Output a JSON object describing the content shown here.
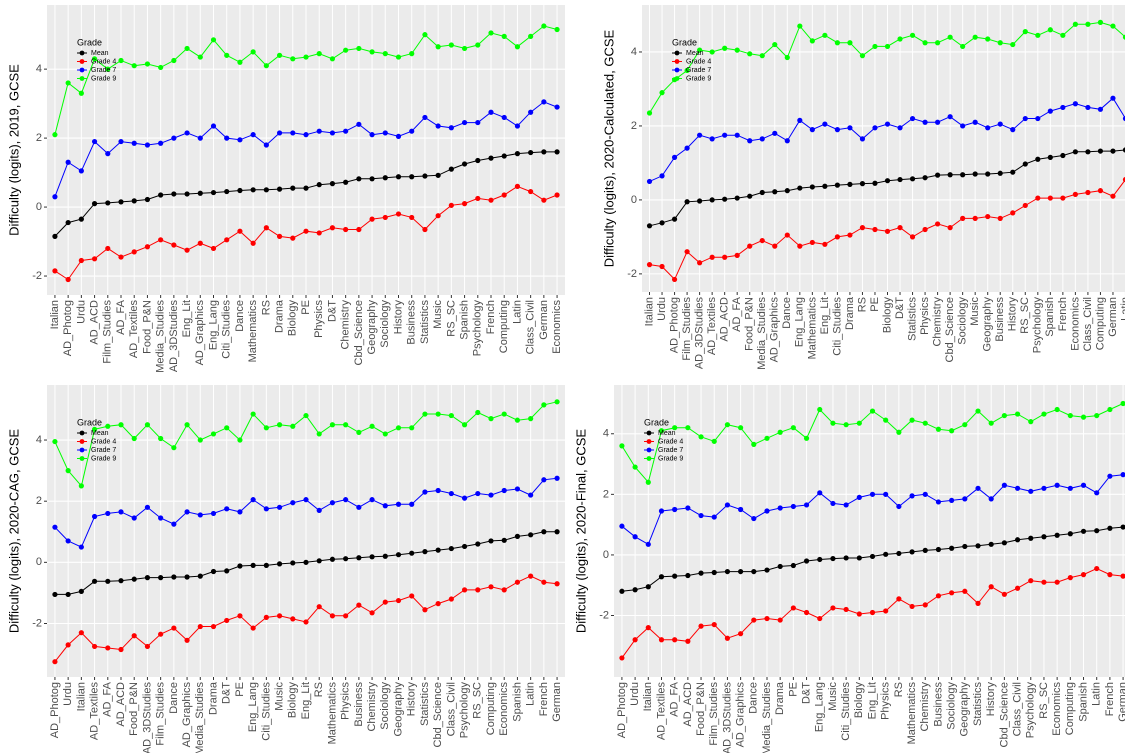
{
  "chart_data": [
    {
      "type": "line",
      "ylabel": "Difficulty (logits), 2019, GCSE",
      "legend_title": "Grade",
      "legend": "top-left",
      "grid": true,
      "ylim": [
        -2.55,
        5.86
      ],
      "yticks": [
        -2,
        0,
        2,
        4
      ],
      "categories": [
        "Italian",
        "AD_Photog",
        "Urdu",
        "AD_ACD",
        "Film_Studies",
        "AD_FA",
        "AD_Textiles",
        "Food_P&N",
        "Media_Studies",
        "AD_3DStudies",
        "Eng_Lit",
        "AD_Graphics",
        "Eng_Lang",
        "Citi_Studies",
        "Dance",
        "Mathematics",
        "RS",
        "Drama",
        "Biology",
        "PE",
        "Physics",
        "D&T",
        "Chemistry",
        "Cbd_Science",
        "Geography",
        "Sociology",
        "History",
        "Business",
        "Statistics",
        "Music",
        "RS_SC",
        "Spanish",
        "Psychology",
        "French",
        "Computing",
        "Latin",
        "Class_Civil",
        "German",
        "Economics"
      ],
      "series": [
        {
          "name": "Mean",
          "color": "#000000",
          "values": [
            -0.85,
            -0.45,
            -0.35,
            0.1,
            0.12,
            0.15,
            0.18,
            0.22,
            0.35,
            0.38,
            0.38,
            0.4,
            0.42,
            0.45,
            0.48,
            0.5,
            0.5,
            0.52,
            0.55,
            0.55,
            0.65,
            0.68,
            0.72,
            0.82,
            0.82,
            0.85,
            0.88,
            0.88,
            0.9,
            0.92,
            1.1,
            1.25,
            1.35,
            1.42,
            1.48,
            1.55,
            1.58,
            1.6,
            1.6
          ]
        },
        {
          "name": "Grade 4",
          "color": "#ff0000",
          "values": [
            -1.85,
            -2.1,
            -1.55,
            -1.5,
            -1.2,
            -1.45,
            -1.3,
            -1.15,
            -0.95,
            -1.1,
            -1.25,
            -1.05,
            -1.2,
            -0.95,
            -0.7,
            -1.05,
            -0.6,
            -0.85,
            -0.9,
            -0.7,
            -0.75,
            -0.6,
            -0.65,
            -0.65,
            -0.35,
            -0.3,
            -0.2,
            -0.3,
            -0.65,
            -0.25,
            0.05,
            0.1,
            0.25,
            0.2,
            0.35,
            0.6,
            0.45,
            0.2,
            0.35
          ]
        },
        {
          "name": "Grade 7",
          "color": "#0000ff",
          "values": [
            0.3,
            1.3,
            1.05,
            1.9,
            1.55,
            1.9,
            1.85,
            1.8,
            1.85,
            2.0,
            2.15,
            2.0,
            2.35,
            2.0,
            1.95,
            2.1,
            1.8,
            2.15,
            2.15,
            2.1,
            2.2,
            2.15,
            2.2,
            2.4,
            2.1,
            2.15,
            2.05,
            2.2,
            2.6,
            2.35,
            2.3,
            2.45,
            2.45,
            2.75,
            2.6,
            2.35,
            2.75,
            3.05,
            2.9
          ]
        },
        {
          "name": "Grade 9",
          "color": "#00ff00",
          "values": [
            2.1,
            3.6,
            3.3,
            4.3,
            4.0,
            4.25,
            4.1,
            4.15,
            4.05,
            4.25,
            4.6,
            4.35,
            4.85,
            4.4,
            4.2,
            4.5,
            4.1,
            4.4,
            4.3,
            4.35,
            4.45,
            4.3,
            4.55,
            4.6,
            4.5,
            4.45,
            4.35,
            4.45,
            5.0,
            4.65,
            4.7,
            4.6,
            4.7,
            5.05,
            4.95,
            4.65,
            4.95,
            5.25,
            5.15
          ]
        }
      ]
    },
    {
      "type": "line",
      "ylabel": "Difficulty (logits), 2020-Calculated, GCSE",
      "legend_title": "Grade",
      "legend": "top-left",
      "grid": true,
      "ylim": [
        -2.49,
        5.27
      ],
      "yticks": [
        -2,
        0,
        2,
        4
      ],
      "categories": [
        "Italian",
        "Urdu",
        "AD_Photog",
        "Film_Studies",
        "AD_3DStudies",
        "AD_Textiles",
        "AD_ACD",
        "AD_FA",
        "Food_P&N",
        "Media_Studies",
        "AD_Graphics",
        "Dance",
        "Eng_Lang",
        "Mathematics",
        "Eng_Lit",
        "Citi_Studies",
        "Drama",
        "RS",
        "PE",
        "Biology",
        "D&T",
        "Statistics",
        "Physics",
        "Chemistry",
        "Cbd_Science",
        "Sociology",
        "Music",
        "Geography",
        "Business",
        "History",
        "RS_SC",
        "Psychology",
        "Spanish",
        "French",
        "Economics",
        "Class_Civil",
        "Computing",
        "German",
        "Latin"
      ],
      "series": [
        {
          "name": "Mean",
          "color": "#000000",
          "values": [
            -0.7,
            -0.62,
            -0.52,
            -0.05,
            -0.03,
            0.0,
            0.02,
            0.05,
            0.1,
            0.2,
            0.22,
            0.25,
            0.32,
            0.35,
            0.37,
            0.4,
            0.42,
            0.44,
            0.45,
            0.52,
            0.55,
            0.57,
            0.6,
            0.67,
            0.68,
            0.68,
            0.7,
            0.7,
            0.72,
            0.75,
            0.97,
            1.1,
            1.15,
            1.2,
            1.3,
            1.3,
            1.32,
            1.32,
            1.35
          ]
        },
        {
          "name": "Grade 4",
          "color": "#ff0000",
          "values": [
            -1.75,
            -1.8,
            -2.15,
            -1.4,
            -1.7,
            -1.55,
            -1.55,
            -1.5,
            -1.25,
            -1.1,
            -1.25,
            -0.95,
            -1.25,
            -1.15,
            -1.2,
            -1.0,
            -0.95,
            -0.75,
            -0.8,
            -0.85,
            -0.75,
            -1.0,
            -0.8,
            -0.65,
            -0.75,
            -0.5,
            -0.5,
            -0.45,
            -0.5,
            -0.35,
            -0.15,
            0.05,
            0.05,
            0.05,
            0.15,
            0.2,
            0.25,
            0.1,
            0.55
          ]
        },
        {
          "name": "Grade 7",
          "color": "#0000ff",
          "values": [
            0.5,
            0.65,
            1.15,
            1.4,
            1.75,
            1.65,
            1.75,
            1.75,
            1.6,
            1.65,
            1.8,
            1.6,
            2.15,
            1.9,
            2.05,
            1.9,
            1.95,
            1.65,
            1.95,
            2.05,
            1.95,
            2.2,
            2.1,
            2.1,
            2.25,
            2.0,
            2.1,
            1.95,
            2.05,
            1.9,
            2.2,
            2.2,
            2.4,
            2.5,
            2.6,
            2.5,
            2.45,
            2.75,
            2.2
          ]
        },
        {
          "name": "Grade 9",
          "color": "#00ff00",
          "values": [
            2.35,
            2.9,
            3.25,
            3.5,
            4.05,
            4.0,
            4.1,
            4.05,
            3.95,
            3.9,
            4.2,
            3.85,
            4.7,
            4.3,
            4.45,
            4.25,
            4.25,
            3.9,
            4.15,
            4.15,
            4.35,
            4.45,
            4.25,
            4.25,
            4.4,
            4.15,
            4.4,
            4.35,
            4.25,
            4.2,
            4.55,
            4.45,
            4.6,
            4.45,
            4.75,
            4.75,
            4.8,
            4.7,
            4.4
          ]
        }
      ]
    },
    {
      "type": "line",
      "ylabel": "Difficulty (logits), 2020-CAG, GCSE",
      "legend_title": "Grade",
      "legend": "top-left",
      "grid": true,
      "ylim": [
        -3.75,
        5.8
      ],
      "yticks": [
        -2,
        0,
        2,
        4
      ],
      "categories": [
        "AD_Photog",
        "Urdu",
        "Italian",
        "AD_Textiles",
        "AD_FA",
        "AD_ACD",
        "Food_P&N",
        "AD_3DStudies",
        "Film_Studies",
        "Dance",
        "AD_Graphics",
        "Media_Studies",
        "Drama",
        "D&T",
        "PE",
        "Eng_Lang",
        "Citi_Studies",
        "Music",
        "Biology",
        "Eng_Lit",
        "RS",
        "Mathematics",
        "Physics",
        "Business",
        "Chemistry",
        "Sociology",
        "Geography",
        "History",
        "Statistics",
        "Cbd_Science",
        "Class_Civil",
        "Psychology",
        "RS_SC",
        "Computing",
        "Economics",
        "Spanish",
        "Latin",
        "French",
        "German"
      ],
      "series": [
        {
          "name": "Mean",
          "color": "#000000",
          "values": [
            -1.05,
            -1.05,
            -0.95,
            -0.62,
            -0.62,
            -0.6,
            -0.55,
            -0.5,
            -0.5,
            -0.48,
            -0.48,
            -0.45,
            -0.3,
            -0.28,
            -0.12,
            -0.1,
            -0.1,
            -0.05,
            -0.02,
            0.0,
            0.05,
            0.1,
            0.12,
            0.15,
            0.18,
            0.2,
            0.25,
            0.3,
            0.35,
            0.4,
            0.45,
            0.52,
            0.6,
            0.7,
            0.72,
            0.85,
            0.9,
            1.0,
            1.0
          ]
        },
        {
          "name": "Grade 4",
          "color": "#ff0000",
          "values": [
            -3.25,
            -2.7,
            -2.3,
            -2.75,
            -2.8,
            -2.85,
            -2.4,
            -2.75,
            -2.35,
            -2.15,
            -2.55,
            -2.1,
            -2.1,
            -1.9,
            -1.75,
            -2.15,
            -1.8,
            -1.75,
            -1.85,
            -1.95,
            -1.45,
            -1.75,
            -1.75,
            -1.4,
            -1.65,
            -1.3,
            -1.25,
            -1.1,
            -1.55,
            -1.35,
            -1.2,
            -0.9,
            -0.9,
            -0.8,
            -0.9,
            -0.65,
            -0.45,
            -0.65,
            -0.7
          ]
        },
        {
          "name": "Grade 7",
          "color": "#0000ff",
          "values": [
            1.15,
            0.7,
            0.5,
            1.5,
            1.6,
            1.65,
            1.45,
            1.8,
            1.45,
            1.25,
            1.65,
            1.55,
            1.6,
            1.75,
            1.65,
            2.05,
            1.75,
            1.8,
            1.95,
            2.05,
            1.7,
            1.95,
            2.05,
            1.8,
            2.05,
            1.85,
            1.9,
            1.9,
            2.3,
            2.35,
            2.25,
            2.1,
            2.25,
            2.2,
            2.35,
            2.4,
            2.2,
            2.7,
            2.75
          ]
        },
        {
          "name": "Grade 9",
          "color": "#00ff00",
          "values": [
            3.95,
            3.0,
            2.5,
            4.35,
            4.45,
            4.5,
            4.05,
            4.5,
            4.05,
            3.75,
            4.5,
            4.0,
            4.2,
            4.4,
            4.0,
            4.85,
            4.4,
            4.5,
            4.45,
            4.8,
            4.2,
            4.5,
            4.5,
            4.25,
            4.45,
            4.2,
            4.4,
            4.4,
            4.85,
            4.85,
            4.8,
            4.5,
            4.9,
            4.7,
            4.85,
            4.65,
            4.7,
            5.15,
            5.25
          ]
        }
      ]
    },
    {
      "type": "line",
      "ylabel": "Difficulty (logits), 2020-Final, GCSE",
      "legend_title": "Grade",
      "legend": "top-left",
      "grid": true,
      "ylim": [
        -4.03,
        5.61
      ],
      "yticks": [
        -2,
        0,
        2,
        4
      ],
      "categories": [
        "AD_Photog",
        "Urdu",
        "Italian",
        "AD_Textiles",
        "AD_FA",
        "AD_ACD",
        "Food_P&N",
        "Film_Studies",
        "AD_3DStudies",
        "AD_Graphics",
        "Dance",
        "Media_Studies",
        "Drama",
        "PE",
        "D&T",
        "Eng_Lang",
        "Music",
        "Citi_Studies",
        "Biology",
        "Eng_Lit",
        "Physics",
        "RS",
        "Mathematics",
        "Chemistry",
        "Business",
        "Sociology",
        "Geography",
        "Statistics",
        "History",
        "Cbd_Science",
        "Class_Civil",
        "Psychology",
        "RS_SC",
        "Economics",
        "Computing",
        "Spanish",
        "Latin",
        "French",
        "German"
      ],
      "series": [
        {
          "name": "Mean",
          "color": "#000000",
          "values": [
            -1.2,
            -1.15,
            -1.05,
            -0.72,
            -0.7,
            -0.68,
            -0.6,
            -0.58,
            -0.55,
            -0.55,
            -0.55,
            -0.5,
            -0.38,
            -0.35,
            -0.2,
            -0.15,
            -0.12,
            -0.1,
            -0.1,
            -0.05,
            0.02,
            0.05,
            0.1,
            0.15,
            0.18,
            0.22,
            0.28,
            0.3,
            0.35,
            0.4,
            0.5,
            0.55,
            0.6,
            0.65,
            0.7,
            0.78,
            0.8,
            0.88,
            0.92
          ]
        },
        {
          "name": "Grade 4",
          "color": "#ff0000",
          "values": [
            -3.4,
            -2.8,
            -2.4,
            -2.8,
            -2.8,
            -2.85,
            -2.35,
            -2.3,
            -2.75,
            -2.6,
            -2.15,
            -2.1,
            -2.15,
            -1.75,
            -1.9,
            -2.1,
            -1.75,
            -1.8,
            -1.95,
            -1.9,
            -1.85,
            -1.45,
            -1.7,
            -1.65,
            -1.35,
            -1.25,
            -1.2,
            -1.6,
            -1.05,
            -1.3,
            -1.1,
            -0.85,
            -0.9,
            -0.9,
            -0.75,
            -0.65,
            -0.45,
            -0.65,
            -0.7
          ]
        },
        {
          "name": "Grade 7",
          "color": "#0000ff",
          "values": [
            0.95,
            0.6,
            0.35,
            1.45,
            1.5,
            1.55,
            1.3,
            1.25,
            1.65,
            1.5,
            1.2,
            1.45,
            1.55,
            1.6,
            1.65,
            2.05,
            1.7,
            1.65,
            1.9,
            2.0,
            2.0,
            1.6,
            1.95,
            2.0,
            1.75,
            1.8,
            1.85,
            2.2,
            1.85,
            2.3,
            2.2,
            2.1,
            2.2,
            2.3,
            2.2,
            2.3,
            2.05,
            2.6,
            2.65
          ]
        },
        {
          "name": "Grade 9",
          "color": "#00ff00",
          "values": [
            3.6,
            2.9,
            2.4,
            4.1,
            4.2,
            4.2,
            3.9,
            3.75,
            4.3,
            4.2,
            3.65,
            3.85,
            4.05,
            4.2,
            3.85,
            4.8,
            4.35,
            4.3,
            4.35,
            4.75,
            4.45,
            4.05,
            4.45,
            4.35,
            4.15,
            4.1,
            4.3,
            4.75,
            4.35,
            4.6,
            4.65,
            4.4,
            4.65,
            4.8,
            4.6,
            4.55,
            4.6,
            4.8,
            5.0
          ]
        }
      ]
    }
  ]
}
